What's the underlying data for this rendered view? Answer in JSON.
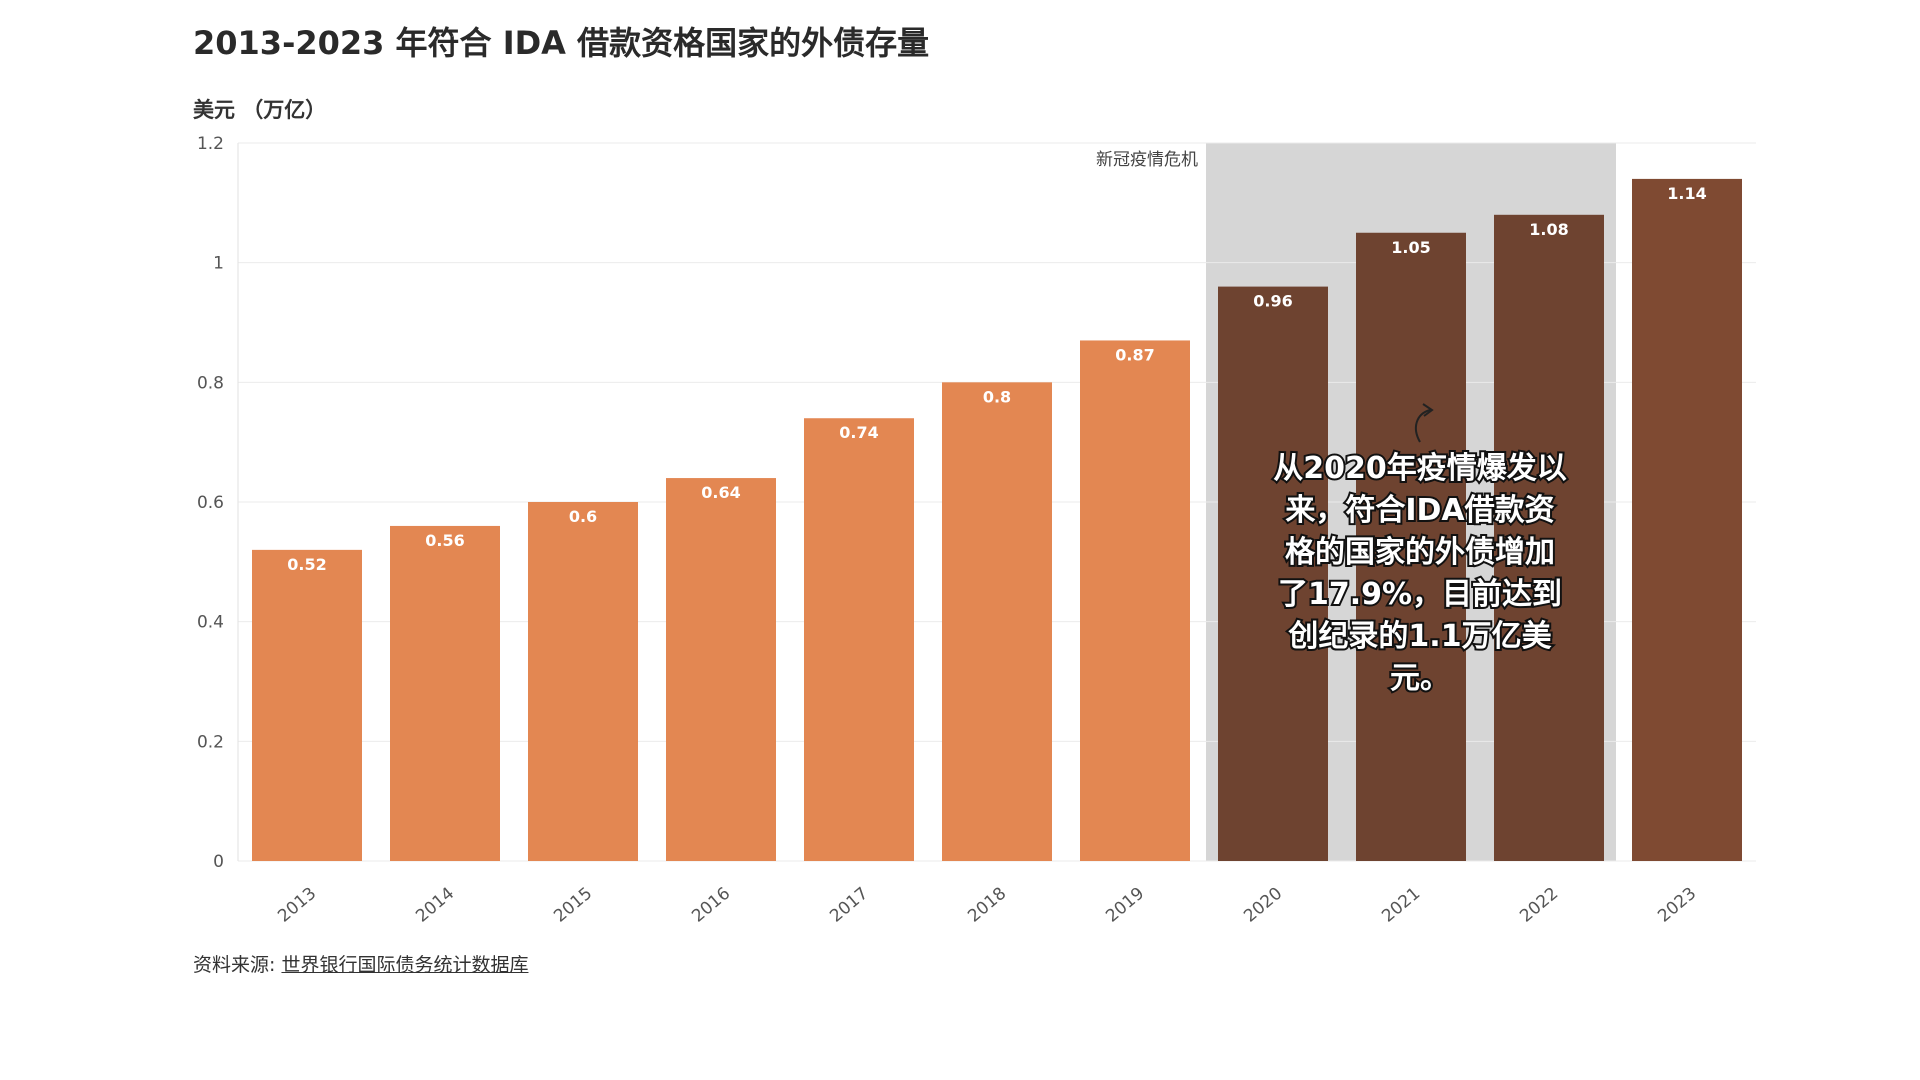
{
  "title": "2013-2023 年符合 IDA 借款资格国家的外债存量",
  "unit_label": "美元 （万亿）",
  "source": {
    "prefix": "资料来源: ",
    "link_text": "世界银行国际债务统计数据库"
  },
  "colors": {
    "pre_covid_bar": "#E38752",
    "covid_bar": "#6E4330",
    "latest_bar": "#7F4A32",
    "covid_band": "#D6D6D6",
    "gridline": "#EBEBEB"
  },
  "chart_data": {
    "type": "bar",
    "title": "2013-2023 年符合 IDA 借款资格国家的外债存量",
    "ylabel": "美元 （万亿）",
    "xlabel": "",
    "categories": [
      "2013",
      "2014",
      "2015",
      "2016",
      "2017",
      "2018",
      "2019",
      "2020",
      "2021",
      "2022",
      "2023"
    ],
    "values": [
      0.52,
      0.56,
      0.6,
      0.64,
      0.74,
      0.8,
      0.87,
      0.96,
      1.05,
      1.08,
      1.14
    ],
    "data_labels": [
      "0.52",
      "0.56",
      "0.6",
      "0.64",
      "0.74",
      "0.8",
      "0.87",
      "0.96",
      "1.05",
      "1.08",
      "1.14"
    ],
    "ylim": [
      0,
      1.2
    ],
    "y_ticks": [
      0,
      0.2,
      0.4,
      0.6,
      0.8,
      1,
      1.2
    ],
    "y_tick_labels": [
      "0",
      "0.2",
      "0.4",
      "0.6",
      "0.8",
      "1",
      "1.2"
    ],
    "grid": true,
    "legend": "none",
    "highlight_period": {
      "label": "新冠疫情危机",
      "from": "2020",
      "to": "2022"
    },
    "annotation": {
      "lines": [
        "从2020年疫情爆发以",
        "来，符合IDA借款资",
        "格的国家的外债增加",
        "了17.9%，目前达到",
        "创纪录的1.1万亿美",
        "元。"
      ]
    }
  }
}
